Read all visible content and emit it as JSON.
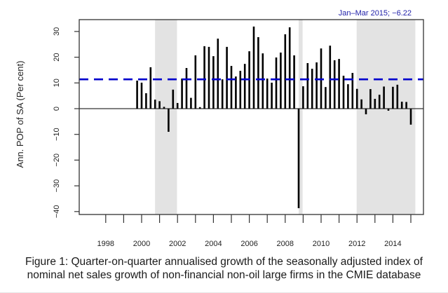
{
  "chart_data": {
    "type": "bar",
    "title": "",
    "xlabel": "",
    "ylabel": "Ann. POP of SA (Per cent)",
    "xlim": [
      1997.5,
      2015.75
    ],
    "ylim": [
      -40,
      35
    ],
    "yticks": [
      -40,
      -30,
      -20,
      -10,
      0,
      10,
      20,
      30
    ],
    "ytick_labels": [
      "−40",
      "−30",
      "−20",
      "−10",
      "0",
      "10",
      "20",
      "30"
    ],
    "xticks": [
      1998,
      1999,
      2000,
      2001,
      2002,
      2003,
      2004,
      2005,
      2006,
      2007,
      2008,
      2009,
      2010,
      2011,
      2012,
      2013,
      2014,
      2015
    ],
    "xtick_labels": [
      {
        "year": 1998,
        "label": "1998"
      },
      {
        "year": 2000,
        "label": "2000"
      },
      {
        "year": 2002,
        "label": "2002"
      },
      {
        "year": 2004,
        "label": "2004"
      },
      {
        "year": 2006,
        "label": "2006"
      },
      {
        "year": 2008,
        "label": "2008"
      },
      {
        "year": 2010,
        "label": "2010"
      },
      {
        "year": 2012,
        "label": "2012"
      },
      {
        "year": 2014,
        "label": "2014"
      }
    ],
    "first_quarter_x": 1999.75,
    "quarter_step": 0.25,
    "values": [
      10.9,
      10.1,
      6.0,
      16.1,
      3.5,
      2.9,
      0.7,
      -9.0,
      7.4,
      2.2,
      11.7,
      15.8,
      4.2,
      20.7,
      0.6,
      24.3,
      24.0,
      20.4,
      27.2,
      11.4,
      24.0,
      16.6,
      12.5,
      14.7,
      17.4,
      22.3,
      31.9,
      27.8,
      21.5,
      11.7,
      10.1,
      19.9,
      21.8,
      28.9,
      31.6,
      20.7,
      -38.7,
      8.7,
      17.7,
      15.5,
      18.0,
      23.4,
      8.4,
      24.5,
      18.8,
      19.3,
      12.8,
      9.5,
      13.9,
      7.7,
      3.6,
      -2.2,
      7.6,
      3.8,
      5.4,
      8.6,
      -0.8,
      8.5,
      9.3,
      2.7,
      2.6,
      -6.22
    ],
    "mean_line": {
      "value": 11.4,
      "color": "#0000cc",
      "style": "dashed"
    },
    "shaded_periods": [
      {
        "start": 2000.75,
        "end": 2001.97
      },
      {
        "start": 2008.75,
        "end": 2008.97
      },
      {
        "start": 2011.98,
        "end": 2015.25
      }
    ],
    "annotation": "Jan–Mar 2015; −6.22",
    "colors": {
      "bar": "#000000",
      "shade": "#e3e3e3",
      "mean": "#0000cc",
      "annotation": "#2222aa"
    },
    "grid": false
  },
  "caption": {
    "line1": "Figure 1: Quarter-on-quarter annualised growth of the seasonally adjusted index of",
    "line2": "nominal net sales growth of non-financial non-oil large firms in the CMIE database"
  }
}
